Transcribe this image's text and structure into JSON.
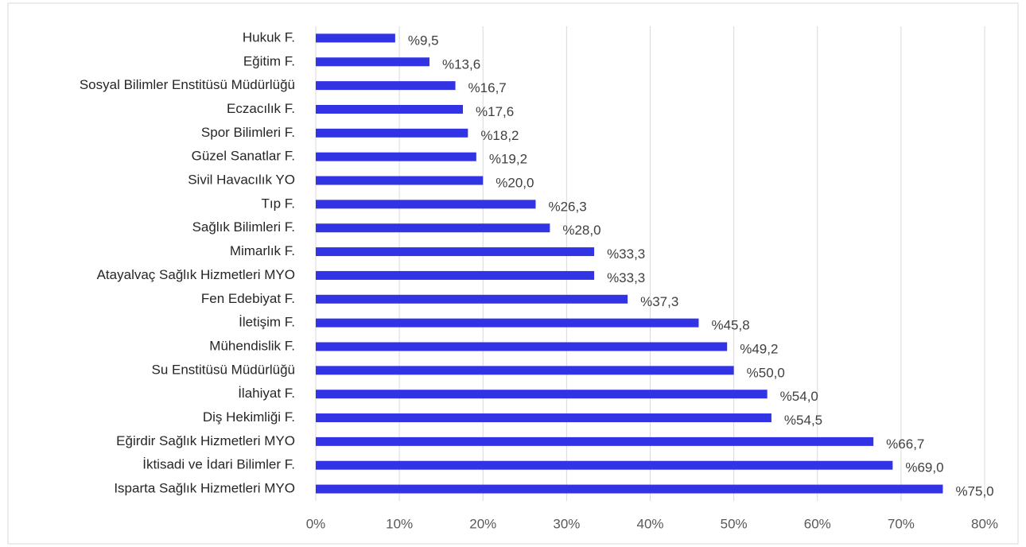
{
  "chart_data": {
    "type": "bar",
    "orientation": "horizontal",
    "categories": [
      "Hukuk F.",
      "Eğitim F.",
      "Sosyal Bilimler Enstitüsü Müdürlüğü",
      "Eczacılık F.",
      "Spor Bilimleri F.",
      "Güzel Sanatlar F.",
      "Sivil Havacılık YO",
      "Tıp F.",
      "Sağlık Bilimleri F.",
      "Mimarlık F.",
      "Atayalvaç Sağlık Hizmetleri MYO",
      "Fen Edebiyat F.",
      "İletişim F.",
      "Mühendislik F.",
      "Su Enstitüsü Müdürlüğü",
      "İlahiyat F.",
      "Diş Hekimliği F.",
      "Eğirdir Sağlık Hizmetleri MYO",
      "İktisadi ve İdari Bilimler F.",
      "Isparta Sağlık Hizmetleri MYO"
    ],
    "values": [
      9.5,
      13.6,
      16.7,
      17.6,
      18.2,
      19.2,
      20.0,
      26.3,
      28.0,
      33.3,
      33.3,
      37.3,
      45.8,
      49.2,
      50.0,
      54.0,
      54.5,
      66.7,
      69.0,
      75.0
    ],
    "value_labels": [
      "%9,5",
      "%13,6",
      "%16,7",
      "%17,6",
      "%18,2",
      "%19,2",
      "%20,0",
      "%26,3",
      "%28,0",
      "%33,3",
      "%33,3",
      "%37,3",
      "%45,8",
      "%49,2",
      "%50,0",
      "%54,0",
      "%54,5",
      "%66,7",
      "%69,0",
      "%75,0"
    ],
    "color": "#3333e6",
    "xlim": [
      0,
      80
    ],
    "xticks": [
      {
        "value": 0,
        "label": "0%"
      },
      {
        "value": 10,
        "label": "10%"
      },
      {
        "value": 20,
        "label": "20%"
      },
      {
        "value": 30,
        "label": "30%"
      },
      {
        "value": 40,
        "label": "40%"
      },
      {
        "value": 50,
        "label": "50%"
      },
      {
        "value": 60,
        "label": "60%"
      },
      {
        "value": 70,
        "label": "70%"
      },
      {
        "value": 80,
        "label": "80%"
      }
    ],
    "grid": true
  }
}
